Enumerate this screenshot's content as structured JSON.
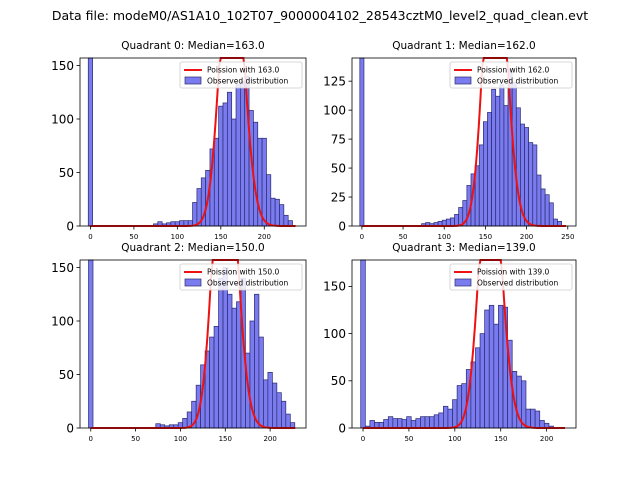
{
  "figure": {
    "suptitle": "Data file: modeM0/AS1A10_102T07_9000004102_28543cztM0_level2_quad_clean.evt"
  },
  "colors": {
    "hist_fill": "#7b7bf0",
    "hist_edge": "#2a2a70",
    "poisson_line": "#ee1111"
  },
  "chart_data": [
    {
      "type": "bar",
      "title": "Quadrant 0: Median=163.0",
      "median": 163.0,
      "xlim": [
        -12,
        248
      ],
      "ylim": [
        0,
        157
      ],
      "xticks": [
        0,
        50,
        100,
        150,
        200
      ],
      "yticks": [
        0,
        50,
        100,
        150
      ],
      "bin_width": 5,
      "legend": {
        "placement": "top-right",
        "line_label": "Poission with 163.0",
        "bar_label": "Observed distribution"
      },
      "zero_bin": {
        "x": 0,
        "height": 157
      },
      "bins_x": [
        75,
        80,
        85,
        90,
        95,
        100,
        105,
        110,
        115,
        120,
        125,
        130,
        135,
        140,
        145,
        150,
        155,
        160,
        165,
        170,
        175,
        180,
        185,
        190,
        195,
        200,
        205,
        210,
        215,
        220,
        225,
        230
      ],
      "bins_y": [
        2,
        4,
        2,
        3,
        4,
        4,
        5,
        5,
        5,
        22,
        35,
        45,
        52,
        72,
        82,
        112,
        115,
        125,
        100,
        132,
        135,
        140,
        108,
        97,
        82,
        82,
        48,
        26,
        25,
        20,
        10,
        5
      ],
      "poisson_mean": 163.0
    },
    {
      "type": "bar",
      "title": "Quadrant 1: Median=162.0",
      "median": 162.0,
      "xlim": [
        -12,
        260
      ],
      "ylim": [
        0,
        145
      ],
      "xticks": [
        0,
        50,
        100,
        150,
        200,
        250
      ],
      "yticks": [
        0,
        25,
        50,
        75,
        100,
        125
      ],
      "bin_width": 5,
      "legend": {
        "placement": "top-right",
        "line_label": "Poission with 162.0",
        "bar_label": "Observed distribution"
      },
      "zero_bin": {
        "x": 0,
        "height": 145
      },
      "bins_x": [
        75,
        80,
        85,
        90,
        95,
        100,
        105,
        110,
        115,
        120,
        125,
        130,
        135,
        140,
        145,
        150,
        155,
        160,
        165,
        170,
        175,
        180,
        185,
        190,
        195,
        200,
        205,
        210,
        215,
        220,
        225,
        230,
        235,
        240
      ],
      "bins_y": [
        2,
        3,
        2,
        3,
        4,
        5,
        6,
        7,
        10,
        16,
        22,
        35,
        45,
        52,
        70,
        90,
        98,
        118,
        112,
        122,
        104,
        135,
        124,
        102,
        88,
        85,
        72,
        70,
        44,
        32,
        27,
        20,
        6,
        4
      ],
      "poisson_mean": 162.0
    },
    {
      "type": "bar",
      "title": "Quadrant 2: Median=150.0",
      "median": 150.0,
      "xlim": [
        -12,
        240
      ],
      "ylim": [
        0,
        157
      ],
      "xticks": [
        0,
        50,
        100,
        150,
        200
      ],
      "yticks": [
        0,
        50,
        100,
        150
      ],
      "bin_width": 5,
      "legend": {
        "placement": "top-right",
        "line_label": "Poission with 150.0",
        "bar_label": "Observed distribution"
      },
      "zero_bin": {
        "x": 0,
        "height": 157
      },
      "bins_x": [
        75,
        80,
        85,
        90,
        95,
        100,
        105,
        110,
        115,
        120,
        125,
        130,
        135,
        140,
        145,
        150,
        155,
        160,
        165,
        170,
        175,
        180,
        185,
        190,
        195,
        200,
        205,
        210,
        215,
        220,
        225
      ],
      "bins_y": [
        4,
        3,
        2,
        3,
        3,
        5,
        9,
        15,
        25,
        40,
        59,
        72,
        85,
        95,
        140,
        150,
        125,
        112,
        118,
        140,
        70,
        100,
        125,
        85,
        45,
        52,
        42,
        33,
        25,
        13,
        5
      ],
      "poisson_mean": 150.0
    },
    {
      "type": "bar",
      "title": "Quadrant 3: Median=139.0",
      "median": 139.0,
      "xlim": [
        -12,
        232
      ],
      "ylim": [
        0,
        178
      ],
      "xticks": [
        0,
        50,
        100,
        150,
        200
      ],
      "yticks": [
        0,
        50,
        100,
        150
      ],
      "bin_width": 5,
      "legend": {
        "placement": "top-right",
        "line_label": "Poission with 139.0",
        "bar_label": "Observed distribution"
      },
      "zero_bin": {
        "x": 0,
        "height": 178
      },
      "bins_x": [
        5,
        10,
        15,
        20,
        25,
        30,
        35,
        40,
        45,
        50,
        55,
        60,
        65,
        70,
        75,
        80,
        85,
        90,
        95,
        100,
        105,
        110,
        115,
        120,
        125,
        130,
        135,
        140,
        145,
        150,
        155,
        160,
        165,
        170,
        175,
        180,
        185,
        190,
        195,
        200,
        205
      ],
      "bins_y": [
        2,
        8,
        6,
        6,
        9,
        12,
        10,
        10,
        9,
        12,
        8,
        10,
        12,
        12,
        12,
        14,
        16,
        23,
        20,
        30,
        45,
        47,
        62,
        70,
        85,
        100,
        125,
        130,
        110,
        130,
        128,
        93,
        60,
        55,
        50,
        20,
        20,
        18,
        8,
        5,
        2
      ],
      "poisson_mean": 139.0
    }
  ]
}
